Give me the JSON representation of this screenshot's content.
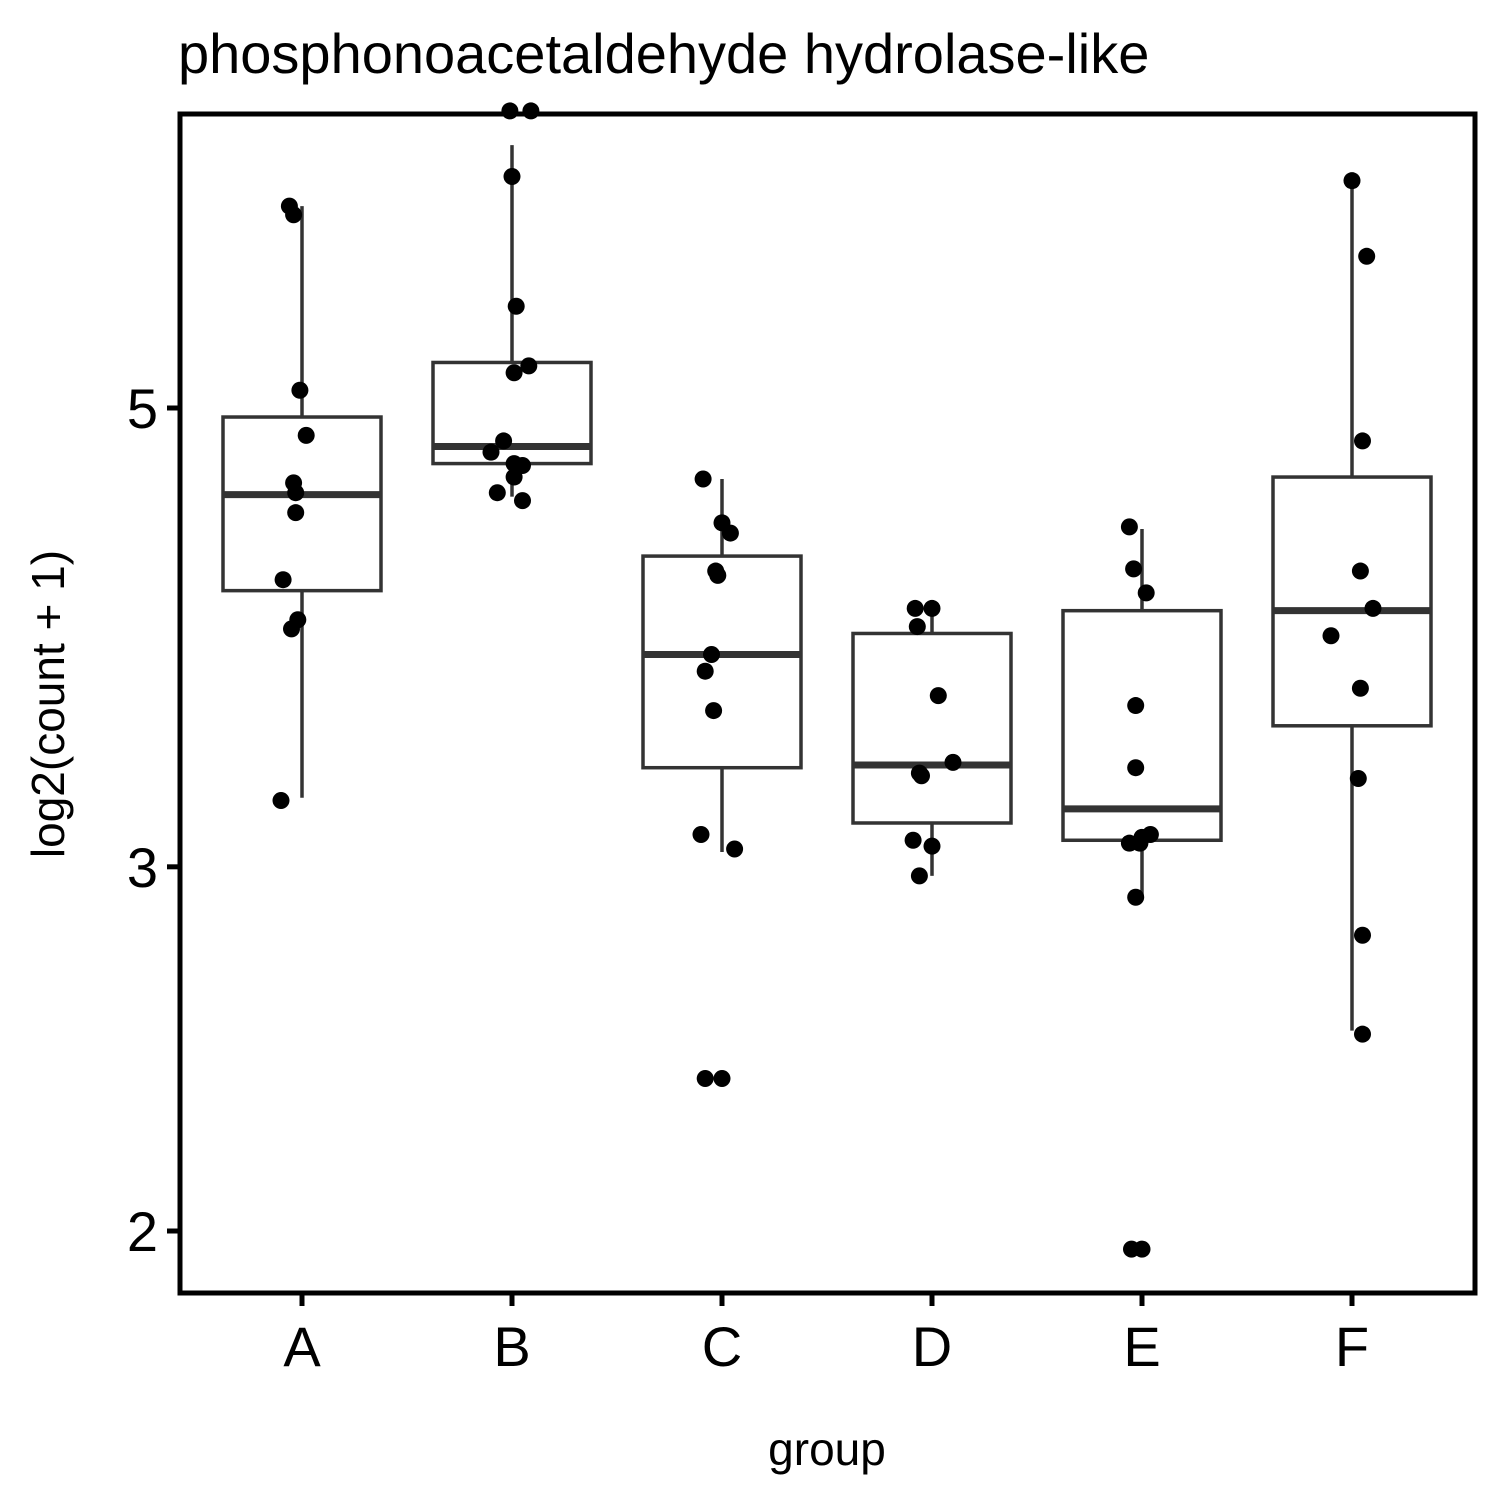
{
  "chart_data": {
    "type": "boxplot",
    "title": "phosphonoacetaldehyde hydrolase-like",
    "xlabel": "group",
    "ylabel": "log2(count + 1)",
    "y_scale": "log",
    "ylim": [
      1.89,
      7.3
    ],
    "y_ticks": [
      {
        "value": 2,
        "label": "2"
      },
      {
        "value": 3,
        "label": "3"
      },
      {
        "value": 5,
        "label": "5"
      }
    ],
    "categories": [
      "A",
      "B",
      "C",
      "D",
      "E",
      "F"
    ],
    "grid": false,
    "legend": "none",
    "colors": {
      "box": "#333333",
      "point": "#000000",
      "frame": "#000000"
    },
    "boxes": [
      {
        "group": "A",
        "whisker_low": 3.24,
        "q1": 4.08,
        "median": 4.54,
        "q3": 4.95,
        "whisker_high": 6.26
      },
      {
        "group": "B",
        "whisker_low": 4.53,
        "q1": 4.7,
        "median": 4.79,
        "q3": 5.26,
        "whisker_high": 6.7
      },
      {
        "group": "C",
        "whisker_low": 3.05,
        "q1": 3.35,
        "median": 3.8,
        "q3": 4.24,
        "whisker_high": 4.62
      },
      {
        "group": "D",
        "whisker_low": 2.97,
        "q1": 3.15,
        "median": 3.36,
        "q3": 3.89,
        "whisker_high": 4.0
      },
      {
        "group": "E",
        "whisker_low": 2.9,
        "q1": 3.09,
        "median": 3.2,
        "q3": 3.99,
        "whisker_high": 4.37
      },
      {
        "group": "F",
        "whisker_low": 2.5,
        "q1": 3.51,
        "median": 3.99,
        "q3": 4.63,
        "whisker_high": 6.44
      }
    ],
    "points": [
      {
        "group": "A",
        "x_jitter": -0.06,
        "y": 6.26
      },
      {
        "group": "A",
        "x_jitter": -0.04,
        "y": 6.2
      },
      {
        "group": "A",
        "x_jitter": -0.01,
        "y": 5.1
      },
      {
        "group": "A",
        "x_jitter": 0.02,
        "y": 4.85
      },
      {
        "group": "A",
        "x_jitter": -0.04,
        "y": 4.6
      },
      {
        "group": "A",
        "x_jitter": -0.03,
        "y": 4.55
      },
      {
        "group": "A",
        "x_jitter": -0.03,
        "y": 4.45
      },
      {
        "group": "A",
        "x_jitter": -0.09,
        "y": 4.13
      },
      {
        "group": "A",
        "x_jitter": -0.02,
        "y": 3.95
      },
      {
        "group": "A",
        "x_jitter": -0.05,
        "y": 3.91
      },
      {
        "group": "A",
        "x_jitter": -0.1,
        "y": 3.23
      },
      {
        "group": "B",
        "x_jitter": -0.01,
        "y": 6.96
      },
      {
        "group": "B",
        "x_jitter": 0.09,
        "y": 6.96
      },
      {
        "group": "B",
        "x_jitter": 0.0,
        "y": 6.47
      },
      {
        "group": "B",
        "x_jitter": 0.02,
        "y": 5.6
      },
      {
        "group": "B",
        "x_jitter": 0.08,
        "y": 5.24
      },
      {
        "group": "B",
        "x_jitter": 0.01,
        "y": 5.2
      },
      {
        "group": "B",
        "x_jitter": -0.04,
        "y": 4.82
      },
      {
        "group": "B",
        "x_jitter": -0.1,
        "y": 4.76
      },
      {
        "group": "B",
        "x_jitter": 0.01,
        "y": 4.7
      },
      {
        "group": "B",
        "x_jitter": 0.05,
        "y": 4.69
      },
      {
        "group": "B",
        "x_jitter": 0.01,
        "y": 4.63
      },
      {
        "group": "B",
        "x_jitter": -0.07,
        "y": 4.55
      },
      {
        "group": "B",
        "x_jitter": 0.05,
        "y": 4.51
      },
      {
        "group": "C",
        "x_jitter": -0.09,
        "y": 4.62
      },
      {
        "group": "C",
        "x_jitter": 0.0,
        "y": 4.4
      },
      {
        "group": "C",
        "x_jitter": 0.04,
        "y": 4.35
      },
      {
        "group": "C",
        "x_jitter": -0.03,
        "y": 4.17
      },
      {
        "group": "C",
        "x_jitter": -0.02,
        "y": 4.15
      },
      {
        "group": "C",
        "x_jitter": -0.05,
        "y": 3.8
      },
      {
        "group": "C",
        "x_jitter": -0.08,
        "y": 3.73
      },
      {
        "group": "C",
        "x_jitter": -0.04,
        "y": 3.57
      },
      {
        "group": "C",
        "x_jitter": -0.1,
        "y": 3.11
      },
      {
        "group": "C",
        "x_jitter": 0.06,
        "y": 3.06
      },
      {
        "group": "C",
        "x_jitter": -0.08,
        "y": 2.37
      },
      {
        "group": "C",
        "x_jitter": 0.0,
        "y": 2.37
      },
      {
        "group": "D",
        "x_jitter": -0.08,
        "y": 4.0
      },
      {
        "group": "D",
        "x_jitter": 0.0,
        "y": 4.0
      },
      {
        "group": "D",
        "x_jitter": -0.07,
        "y": 3.92
      },
      {
        "group": "D",
        "x_jitter": 0.03,
        "y": 3.63
      },
      {
        "group": "D",
        "x_jitter": 0.1,
        "y": 3.37
      },
      {
        "group": "D",
        "x_jitter": -0.06,
        "y": 3.33
      },
      {
        "group": "D",
        "x_jitter": -0.05,
        "y": 3.32
      },
      {
        "group": "D",
        "x_jitter": -0.09,
        "y": 3.09
      },
      {
        "group": "D",
        "x_jitter": 0.0,
        "y": 3.07
      },
      {
        "group": "D",
        "x_jitter": -0.06,
        "y": 2.97
      },
      {
        "group": "E",
        "x_jitter": -0.06,
        "y": 4.38
      },
      {
        "group": "E",
        "x_jitter": -0.04,
        "y": 4.18
      },
      {
        "group": "E",
        "x_jitter": 0.02,
        "y": 4.07
      },
      {
        "group": "E",
        "x_jitter": -0.03,
        "y": 3.59
      },
      {
        "group": "E",
        "x_jitter": -0.03,
        "y": 3.35
      },
      {
        "group": "E",
        "x_jitter": 0.04,
        "y": 3.11
      },
      {
        "group": "E",
        "x_jitter": 0.0,
        "y": 3.1
      },
      {
        "group": "E",
        "x_jitter": -0.01,
        "y": 3.08
      },
      {
        "group": "E",
        "x_jitter": -0.06,
        "y": 3.08
      },
      {
        "group": "E",
        "x_jitter": -0.03,
        "y": 2.9
      },
      {
        "group": "E",
        "x_jitter": -0.05,
        "y": 1.96
      },
      {
        "group": "E",
        "x_jitter": 0.0,
        "y": 1.96
      },
      {
        "group": "F",
        "x_jitter": 0.0,
        "y": 6.44
      },
      {
        "group": "F",
        "x_jitter": 0.07,
        "y": 5.92
      },
      {
        "group": "F",
        "x_jitter": 0.05,
        "y": 4.82
      },
      {
        "group": "F",
        "x_jitter": 0.04,
        "y": 4.17
      },
      {
        "group": "F",
        "x_jitter": 0.1,
        "y": 4.0
      },
      {
        "group": "F",
        "x_jitter": -0.1,
        "y": 3.88
      },
      {
        "group": "F",
        "x_jitter": 0.04,
        "y": 3.66
      },
      {
        "group": "F",
        "x_jitter": 0.03,
        "y": 3.31
      },
      {
        "group": "F",
        "x_jitter": 0.05,
        "y": 2.78
      },
      {
        "group": "F",
        "x_jitter": 0.05,
        "y": 2.49
      }
    ]
  }
}
